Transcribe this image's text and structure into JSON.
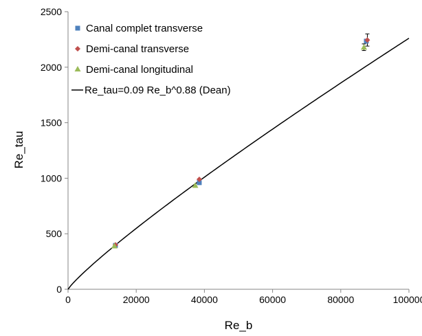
{
  "chart_data": {
    "type": "scatter",
    "xlabel": "Re_b",
    "ylabel": "Re_tau",
    "xlim": [
      0,
      100000
    ],
    "ylim": [
      0,
      2500
    ],
    "xticks": [
      0,
      20000,
      40000,
      60000,
      80000,
      100000
    ],
    "yticks": [
      0,
      500,
      1000,
      1500,
      2000,
      2500
    ],
    "grid": false,
    "legend_position": "top-left",
    "colors": {
      "canal_complet": "#4f81bd",
      "demi_transverse": "#c0504d",
      "demi_longitudinal": "#9bbb59",
      "curve": "#000000"
    },
    "series": [
      {
        "name": "Canal complet transverse",
        "marker": "square",
        "color": "#4f81bd",
        "points": [
          {
            "x": 13900,
            "y": 395
          },
          {
            "x": 38500,
            "y": 960
          },
          {
            "x": 87500,
            "y": 2235
          }
        ]
      },
      {
        "name": "Demi-canal transverse",
        "marker": "diamond",
        "color": "#c0504d",
        "points": [
          {
            "x": 13900,
            "y": 400
          },
          {
            "x": 38500,
            "y": 990
          },
          {
            "x": 87800,
            "y": 2245,
            "yerr": 55
          }
        ]
      },
      {
        "name": "Demi-canal longitudinal",
        "marker": "triangle",
        "color": "#9bbb59",
        "points": [
          {
            "x": 13600,
            "y": 390
          },
          {
            "x": 37300,
            "y": 935
          },
          {
            "x": 86800,
            "y": 2180,
            "yerr": 30
          }
        ]
      }
    ],
    "curve": {
      "name": "Re_tau=0.09 Re_b^0.88 (Dean)",
      "coefficient": 0.09,
      "exponent": 0.88,
      "x_start": 0,
      "x_end": 100000
    }
  }
}
